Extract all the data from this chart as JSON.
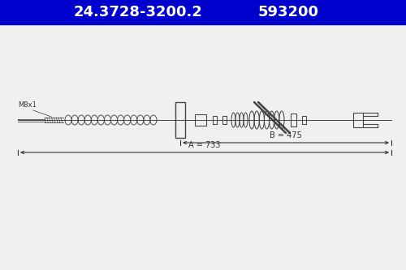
{
  "title1": "24.3728-3200.2",
  "title2": "593200",
  "header_bg": "#0000cc",
  "header_text_color": "#ffffff",
  "bg_color": "#f0f0f0",
  "draw_bg": "#f0f0f0",
  "line_color": "#444444",
  "dim_color": "#333333",
  "label_m8x1": "M8x1",
  "label_A": "A = 733",
  "label_B": "B = 475",
  "figsize": [
    5.0,
    3.33
  ],
  "dpi": 100
}
